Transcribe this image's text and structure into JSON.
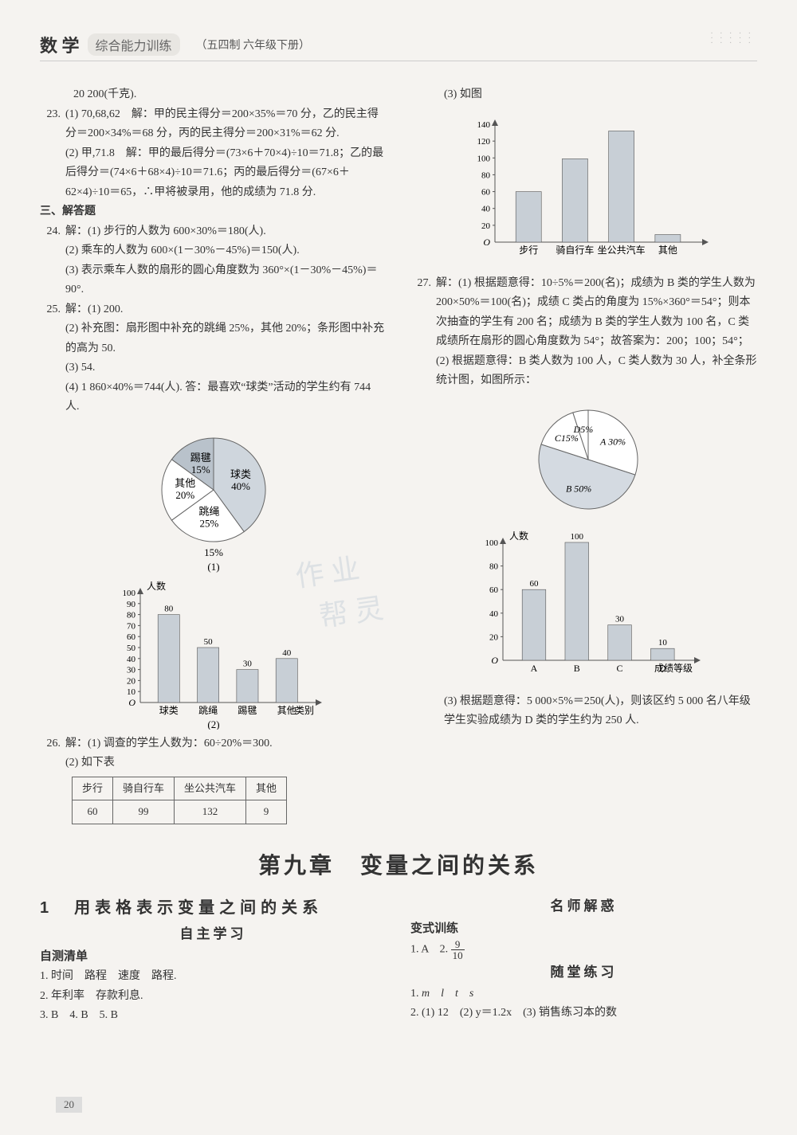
{
  "header": {
    "subject": "数 学",
    "book": "综合能力训练",
    "grade": "（五四制  六年级下册）"
  },
  "page_number": "20",
  "left": {
    "l0": "20 200(千克).",
    "q23": {
      "num": "23.",
      "a": "(1) 70,68,62　解：甲的民主得分＝200×35%＝70 分，乙的民主得分＝200×34%＝68 分，丙的民主得分＝200×31%＝62 分.",
      "b": "(2) 甲,71.8　解：甲的最后得分＝(73×6＋70×4)÷10＝71.8；乙的最后得分＝(74×6＋68×4)÷10＝71.6；丙的最后得分＝(67×6＋62×4)÷10＝65，∴甲将被录用，他的成绩为 71.8 分."
    },
    "sec3": "三、解答题",
    "q24": {
      "num": "24.",
      "a": "解：(1) 步行的人数为 600×30%＝180(人).",
      "b": "(2) 乘车的人数为 600×(1－30%－45%)＝150(人).",
      "c": "(3) 表示乘车人数的扇形的圆心角度数为 360°×(1－30%－45%)＝90°."
    },
    "q25": {
      "num": "25.",
      "a": "解：(1) 200.",
      "b": "(2) 补充图：扇形图中补充的跳绳 25%，其他 20%；条形图中补充的高为 50.",
      "c": "(3) 54.",
      "d": "(4) 1 860×40%＝744(人). 答：最喜欢“球类”活动的学生约有 744 人."
    },
    "pie25": {
      "title": "(1)",
      "slices": [
        {
          "label": "球类",
          "sub": "40%",
          "value": 40,
          "color": "#cfd6dd"
        },
        {
          "label": "跳绳",
          "sub": "25%",
          "value": 25,
          "color": "#ffffff"
        },
        {
          "label": "其他",
          "sub": "20%",
          "value": 20,
          "color": "#ffffff"
        },
        {
          "label": "踢毽",
          "sub": "15%",
          "value": 15,
          "color": "#b9c2cb"
        }
      ],
      "sub_label": "15%",
      "stroke": "#666"
    },
    "bar25": {
      "title": "(2)",
      "ylabel": "人数",
      "xlabel": "类别",
      "ymax": 100,
      "ytick": 10,
      "categories": [
        "球类",
        "跳绳",
        "踢毽",
        "其他"
      ],
      "values": [
        80,
        50,
        30,
        40
      ],
      "value_labels": [
        "80",
        "50",
        "30",
        "40"
      ],
      "bar_color": "#c8cfd6",
      "axis_color": "#555"
    },
    "q26": {
      "num": "26.",
      "a": "解：(1) 调查的学生人数为：60÷20%＝300.",
      "b": "(2) 如下表"
    },
    "table26": {
      "headers": [
        "步行",
        "骑自行车",
        "坐公共汽车",
        "其他"
      ],
      "row": [
        "60",
        "99",
        "132",
        "9"
      ]
    }
  },
  "right": {
    "bar26": {
      "pre": "(3) 如图",
      "ymax": 140,
      "ytick": 20,
      "categories": [
        "步行",
        "骑自行车",
        "坐公共汽车",
        "其他"
      ],
      "values": [
        60,
        99,
        132,
        9
      ],
      "bar_color": "#c8cfd6",
      "axis_color": "#555"
    },
    "q27": {
      "num": "27.",
      "a": "解：(1) 根据题意得：10÷5%＝200(名)；成绩为 B 类的学生人数为 200×50%＝100(名)；成绩 C 类占的角度为 15%×360°＝54°；则本次抽查的学生有 200 名；成绩为 B 类的学生人数为 100 名，C 类成绩所在扇形的圆心角度数为 54°；故答案为：200；100；54°；",
      "b": "(2) 根据题意得：B 类人数为 100 人，C 类人数为 30 人，补全条形统计图，如图所示："
    },
    "pie27": {
      "slices": [
        {
          "label": "A 30%",
          "value": 30,
          "color": "#ffffff"
        },
        {
          "label": "B 50%",
          "value": 50,
          "color": "#d4dae1"
        },
        {
          "label": "C15%",
          "value": 15,
          "color": "#ffffff"
        },
        {
          "label": "D5%",
          "value": 5,
          "color": "#ffffff"
        }
      ],
      "stroke": "#666"
    },
    "bar27": {
      "ylabel": "人数",
      "xlabel": "成绩等级",
      "ymax": 100,
      "ytick": 20,
      "categories": [
        "A",
        "B",
        "C",
        "D"
      ],
      "values": [
        60,
        100,
        30,
        10
      ],
      "value_labels": [
        "60",
        "100",
        "30",
        "10"
      ],
      "bar_color": "#c8cfd6",
      "axis_color": "#555"
    },
    "q27c": "(3) 根据题意得：5 000×5%＝250(人)，则该区约 5 000 名八年级学生实验成绩为 D 类的学生约为 250 人."
  },
  "chapter": "第九章　变量之间的关系",
  "bottom": {
    "left": {
      "h1": "1　用表格表示变量之间的关系",
      "zzxx": "自主学习",
      "zcqd": "自测清单",
      "l1": "1. 时间　路程　速度　路程.",
      "l2": "2. 年利率　存款利息.",
      "l3": "3. B　4. B　5. B"
    },
    "right": {
      "msjh": "名师解惑",
      "bsxl": "变式训练",
      "bs1a": "1. A　2. ",
      "frac_n": "9",
      "frac_d": "10",
      "stlx": "随堂练习",
      "s1": "1. ",
      "s1v": "m　l　t　s",
      "s2": "2. (1) 12　(2) y＝1.2x　(3) 销售练习本的数"
    }
  }
}
